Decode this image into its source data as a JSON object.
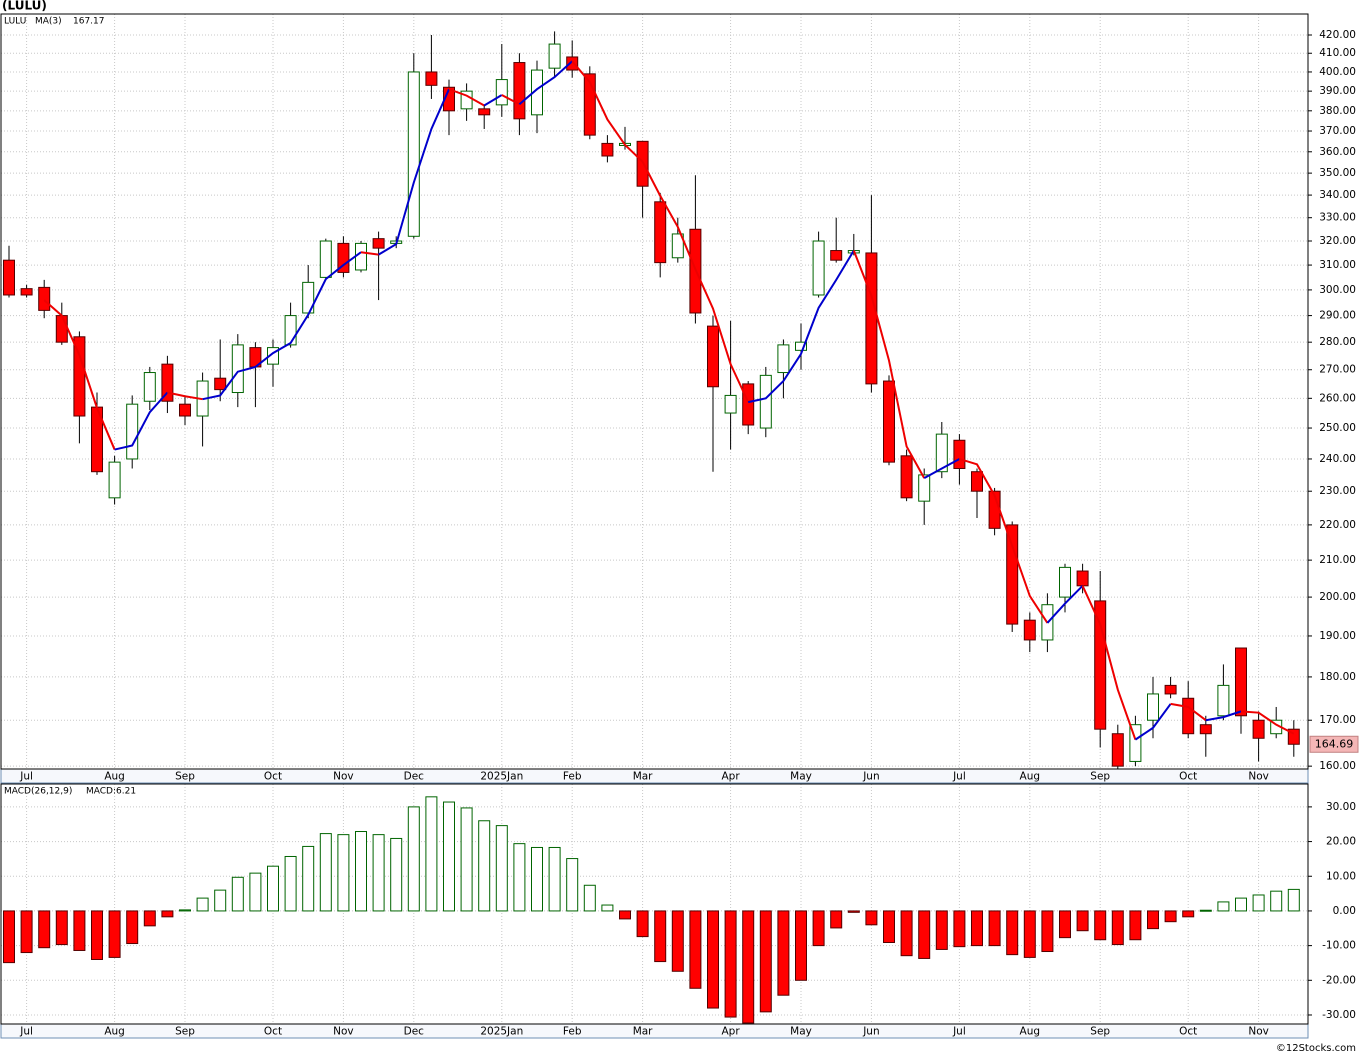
{
  "title": "(LULU)",
  "footer": "©12Stocks.com",
  "chart_data": [
    {
      "type": "candlestick",
      "name": "LULU",
      "categories": [
        null,
        "Jul",
        null,
        null,
        null,
        null,
        "Aug",
        null,
        null,
        null,
        "Sep",
        null,
        null,
        null,
        null,
        "Oct",
        null,
        null,
        null,
        "Nov",
        null,
        null,
        null,
        "Dec",
        null,
        null,
        null,
        null,
        "2025Jan",
        null,
        null,
        null,
        "Feb",
        null,
        null,
        null,
        "Mar",
        null,
        null,
        null,
        null,
        "Apr",
        null,
        null,
        null,
        "May",
        null,
        null,
        null,
        "Jun",
        null,
        null,
        null,
        null,
        "Jul",
        null,
        null,
        null,
        "Aug",
        null,
        null,
        null,
        "Sep",
        null,
        null,
        null,
        null,
        "Oct",
        null,
        null,
        null,
        "Nov",
        null,
        null
      ],
      "open": [
        312,
        300.5,
        301,
        290,
        282,
        257,
        228,
        240,
        259,
        272,
        258,
        254,
        267,
        262,
        278,
        272,
        279,
        291,
        305,
        319,
        308,
        321,
        319,
        322,
        400,
        392,
        381,
        381,
        383,
        405,
        378,
        402,
        408,
        399,
        364,
        363,
        365,
        337,
        313,
        325,
        286,
        255,
        265,
        250,
        269,
        277,
        298,
        316,
        315,
        315,
        266,
        241,
        227,
        236,
        246,
        236,
        230,
        220,
        194,
        189,
        200,
        207,
        199,
        167,
        161,
        170,
        178,
        175,
        169,
        171,
        187,
        170,
        167,
        168
      ],
      "high": [
        318,
        302,
        304,
        295,
        284,
        262,
        241,
        261,
        271,
        275,
        261,
        269,
        281,
        283,
        280,
        281,
        295,
        310,
        321,
        322,
        320,
        324,
        322,
        410,
        420,
        396,
        394,
        383,
        415,
        410,
        406,
        422,
        417,
        403,
        368,
        372,
        365,
        341,
        330,
        349,
        290,
        288,
        266,
        271,
        281,
        287,
        324,
        330,
        323,
        340,
        268,
        243,
        237,
        252,
        248,
        237,
        231,
        221,
        196,
        201,
        209,
        209,
        207,
        169,
        171,
        180,
        180,
        179,
        171,
        183,
        187,
        172,
        173,
        170
      ],
      "low": [
        297,
        297,
        289,
        279,
        245,
        235,
        226,
        237,
        256,
        255,
        251,
        244,
        259,
        257,
        257,
        264,
        278,
        289,
        304,
        305,
        307,
        296,
        317,
        321,
        386,
        368,
        375,
        371,
        377,
        368,
        369,
        397,
        397,
        366,
        355,
        361,
        330,
        305,
        311,
        287,
        236,
        243,
        248,
        247,
        260,
        270,
        297,
        311,
        314,
        262,
        238,
        227,
        220,
        234,
        232,
        222,
        217,
        191,
        186,
        186,
        196,
        201,
        164,
        159.5,
        160,
        166,
        175,
        166,
        162,
        170,
        167,
        161,
        166,
        162
      ],
      "close": [
        298,
        298,
        292,
        280,
        254,
        236,
        239,
        258,
        269,
        259,
        254,
        266,
        263,
        279,
        271,
        278,
        290,
        303,
        320,
        307,
        319,
        317,
        320,
        400,
        393,
        380,
        390,
        378,
        396,
        376,
        401,
        415,
        401,
        368,
        358,
        364,
        344,
        311,
        323,
        291,
        264,
        261,
        251,
        268,
        279,
        280,
        320,
        312,
        316,
        265,
        239,
        228,
        235,
        248,
        237,
        230,
        219,
        193,
        189,
        198,
        208,
        203,
        168,
        160,
        169,
        176,
        176,
        167,
        167,
        178,
        171,
        166,
        170,
        164.69
      ],
      "up_color": "#006400",
      "down_color": "#ff0000",
      "ma": {
        "name": "MA(3)",
        "last": 167.17,
        "up_color": "#0000cc",
        "down_color": "#ee0000",
        "values": [
          null,
          null,
          296,
          290,
          275.3,
          256.7,
          243,
          244.3,
          255.3,
          262,
          260.7,
          259.7,
          261,
          269.3,
          271,
          276,
          279.7,
          290.3,
          304.3,
          310,
          315.3,
          314.3,
          318.7,
          345.7,
          371,
          391,
          387.7,
          382.7,
          388,
          383.3,
          391,
          397.3,
          405.7,
          394.7,
          375.7,
          363.3,
          355.3,
          339.7,
          326,
          308.3,
          292.7,
          272,
          258.7,
          260,
          266,
          275.7,
          293,
          304,
          316,
          297.7,
          273.3,
          244,
          234,
          237,
          240,
          238.3,
          228.7,
          214,
          200.3,
          193.3,
          198.3,
          203,
          193,
          177,
          165.7,
          168.3,
          173.7,
          173,
          170,
          170.7,
          172,
          171.7,
          169,
          167
        ]
      },
      "last_price": 164.69,
      "log": true,
      "ylim": [
        159.4,
        431.8
      ],
      "grid": true,
      "yticks": [
        {
          "value": 160,
          "label": "160.00"
        },
        {
          "value": 170,
          "label": "170.00"
        },
        {
          "value": 180,
          "label": "180.00"
        },
        {
          "value": 190,
          "label": "190.00"
        },
        {
          "value": 200,
          "label": "200.00"
        },
        {
          "value": 210,
          "label": "210.00"
        },
        {
          "value": 220,
          "label": "220.00"
        },
        {
          "value": 230,
          "label": "230.00"
        },
        {
          "value": 240,
          "label": "240.00"
        },
        {
          "value": 250,
          "label": "250.00"
        },
        {
          "value": 260,
          "label": "260.00"
        },
        {
          "value": 270,
          "label": "270.00"
        },
        {
          "value": 280,
          "label": "280.00"
        },
        {
          "value": 290,
          "label": "290.00"
        },
        {
          "value": 300,
          "label": "300.00"
        },
        {
          "value": 310,
          "label": "310.00"
        },
        {
          "value": 320,
          "label": "320.00"
        },
        {
          "value": 330,
          "label": "330.00"
        },
        {
          "value": 340,
          "label": "340.00"
        },
        {
          "value": 350,
          "label": "350.00"
        },
        {
          "value": 360,
          "label": "360.00"
        },
        {
          "value": 370,
          "label": "370.00"
        },
        {
          "value": 380,
          "label": "380.00"
        },
        {
          "value": 390,
          "label": "390.00"
        },
        {
          "value": 400,
          "label": "400.00"
        },
        {
          "value": 410,
          "label": "410.00"
        },
        {
          "value": 420,
          "label": "420.00"
        }
      ]
    },
    {
      "type": "bar",
      "name": "MACD(26,12,9)",
      "series_label": "MACD:6.21",
      "categories": [
        null,
        "Jul",
        null,
        null,
        null,
        null,
        "Aug",
        null,
        null,
        null,
        "Sep",
        null,
        null,
        null,
        null,
        "Oct",
        null,
        null,
        null,
        "Nov",
        null,
        null,
        null,
        "Dec",
        null,
        null,
        null,
        null,
        "2025Jan",
        null,
        null,
        null,
        "Feb",
        null,
        null,
        null,
        "Mar",
        null,
        null,
        null,
        null,
        "Apr",
        null,
        null,
        null,
        "May",
        null,
        null,
        null,
        "Jun",
        null,
        null,
        null,
        null,
        "Jul",
        null,
        null,
        null,
        "Aug",
        null,
        null,
        null,
        "Sep",
        null,
        null,
        null,
        null,
        "Oct",
        null,
        null,
        null,
        "Nov",
        null,
        null
      ],
      "values": [
        -14.9,
        -12,
        -10.6,
        -9.7,
        -11.4,
        -14,
        -13.4,
        -9.4,
        -4.3,
        -1.7,
        0.3,
        3.7,
        6,
        9.7,
        10.9,
        12.9,
        15.7,
        18.6,
        22.3,
        22,
        22.9,
        22,
        20.9,
        30,
        32.9,
        31.4,
        29.7,
        26,
        24.6,
        19.4,
        18.3,
        18.3,
        15.1,
        7.4,
        1.7,
        -2.3,
        -7.4,
        -14.6,
        -17.4,
        -22.3,
        -28,
        -30.6,
        -32.3,
        -29.1,
        -24.3,
        -20,
        -10,
        -4.9,
        -0.4,
        -4,
        -9.1,
        -12.9,
        -13.7,
        -11.1,
        -10.3,
        -10,
        -10,
        -12.6,
        -13.4,
        -11.7,
        -7.7,
        -5.7,
        -8.3,
        -9.7,
        -8.3,
        -5.1,
        -3.1,
        -1.7,
        0.2,
        2.6,
        3.7,
        4.6,
        5.7,
        6.21
      ],
      "up_color": "#006400",
      "down_color": "#ff0000",
      "ylim": [
        -32.6,
        36.6
      ],
      "grid": true,
      "yticks": [
        {
          "value": -30,
          "label": "-30.00"
        },
        {
          "value": -20,
          "label": "-20.00"
        },
        {
          "value": -10,
          "label": "-10.00"
        },
        {
          "value": 0,
          "label": "0.00"
        },
        {
          "value": 10,
          "label": "10.00"
        },
        {
          "value": 20,
          "label": "20.00"
        },
        {
          "value": 30,
          "label": "30.00"
        }
      ]
    }
  ]
}
